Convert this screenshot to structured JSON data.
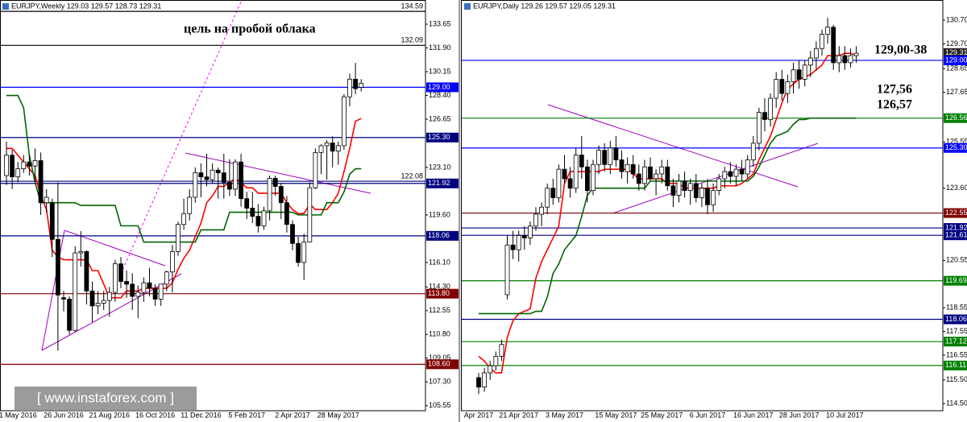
{
  "chart_data": [
    {
      "type": "candlestick",
      "title": "EURJPY,Weekly  129.03 129.57 128.73 129.31",
      "annotations": [
        "цель на пробой облака"
      ],
      "categories": [
        null,
        null,
        "1 May 2016",
        null,
        null,
        null,
        null,
        null,
        null,
        null,
        "26 Jun 2016",
        null,
        null,
        null,
        null,
        null,
        null,
        null,
        "21 Aug 2016",
        null,
        null,
        null,
        null,
        null,
        null,
        null,
        "16 Oct 2016",
        null,
        null,
        null,
        null,
        null,
        null,
        null,
        "11 Dec 2016",
        null,
        null,
        null,
        null,
        null,
        null,
        null,
        "5 Feb 2017",
        null,
        null,
        null,
        null,
        null,
        null,
        null,
        "2 Apr 2017",
        null,
        null,
        null,
        null,
        null,
        null,
        null,
        "28 May 2017",
        null,
        null,
        null,
        null
      ],
      "open": [
        122.5,
        124.0,
        122.4,
        123.0,
        123.5,
        123.2,
        123.6,
        120.5,
        120.5,
        117.8,
        113.5,
        113.4,
        111.1,
        116.8,
        116.9,
        114.0,
        112.9,
        113.1,
        113.3,
        113.9,
        116.0,
        114.7,
        114.5,
        113.6,
        113.9,
        114.6,
        114.2,
        113.4,
        114.5,
        115.4,
        116.9,
        118.9,
        119.7,
        120.9,
        122.7,
        122.4,
        122.2,
        122.9,
        122.7,
        122.0,
        121.5,
        123.5,
        120.8,
        120.1,
        119.5,
        118.8,
        119.9,
        122.3,
        121.7,
        120.5,
        118.9,
        117.5,
        116.1,
        117.6,
        121.6,
        124.2,
        124.7,
        124.9,
        124.3,
        124.7,
        128.3,
        129.6,
        129.0
      ],
      "high": [
        125.0,
        124.4,
        123.5,
        124.0,
        124.0,
        124.5,
        124.2,
        121.5,
        120.8,
        122.0,
        114.0,
        113.6,
        117.3,
        118.4,
        117.0,
        114.7,
        114.0,
        114.0,
        114.3,
        116.3,
        116.5,
        115.5,
        115.3,
        114.4,
        115.0,
        115.7,
        114.5,
        114.5,
        115.5,
        117.4,
        119.1,
        120.8,
        121.5,
        123.1,
        123.4,
        124.1,
        123.4,
        123.1,
        124.1,
        123.7,
        123.7,
        124.1,
        121.3,
        121.3,
        120.4,
        120.2,
        122.5,
        122.5,
        121.9,
        121.0,
        119.2,
        118.0,
        118.2,
        122.0,
        124.5,
        124.8,
        125.1,
        125.4,
        125.0,
        128.5,
        130.0,
        130.8,
        129.6
      ],
      "low": [
        121.8,
        121.5,
        122.0,
        122.7,
        122.5,
        122.0,
        119.6,
        119.8,
        116.5,
        109.6,
        112.5,
        110.8,
        111.0,
        115.8,
        113.0,
        111.7,
        112.3,
        112.6,
        112.1,
        113.2,
        114.2,
        113.5,
        112.6,
        112.0,
        113.2,
        113.6,
        112.9,
        112.9,
        114.0,
        113.9,
        116.6,
        118.5,
        119.2,
        120.5,
        120.9,
        121.7,
        121.9,
        120.8,
        120.8,
        121.0,
        121.0,
        120.2,
        119.3,
        119.0,
        118.3,
        118.5,
        119.2,
        121.0,
        119.3,
        118.3,
        117.0,
        115.8,
        114.8,
        117.6,
        121.5,
        122.6,
        122.2,
        123.1,
        123.3,
        124.4,
        127.6,
        128.5,
        128.7
      ],
      "close": [
        124.0,
        122.4,
        123.0,
        123.5,
        123.2,
        123.6,
        120.5,
        120.9,
        117.8,
        113.7,
        113.4,
        111.1,
        116.8,
        116.9,
        114.0,
        112.9,
        113.1,
        113.3,
        113.9,
        116.0,
        114.7,
        114.5,
        113.6,
        113.9,
        114.6,
        114.2,
        113.4,
        114.5,
        115.4,
        116.9,
        118.9,
        119.7,
        120.9,
        122.7,
        122.4,
        122.2,
        122.9,
        122.7,
        122.0,
        121.5,
        123.5,
        120.8,
        120.1,
        119.5,
        118.8,
        119.9,
        122.3,
        121.7,
        120.5,
        118.9,
        117.5,
        116.1,
        117.6,
        121.6,
        124.2,
        124.7,
        124.9,
        124.3,
        124.7,
        128.3,
        129.6,
        128.9,
        129.3
      ],
      "up_color": "#ffffff",
      "down_color": "#000000",
      "lines": [
        {
          "color": "#ff0000",
          "values": [
            124.5,
            124.5,
            124.0,
            123.5,
            123.0,
            122.5,
            121.0,
            120.0,
            117.0,
            116.5,
            116.3,
            116.3,
            116.3,
            116.3,
            116.3,
            115.5,
            115.5,
            114.5,
            113.5,
            113.5,
            113.5,
            114.0,
            114.0,
            114.0,
            114.2,
            114.2,
            114.2,
            114.2,
            114.2,
            114.6,
            115.6,
            116.4,
            117.0,
            118.0,
            119.0,
            120.5,
            121.0,
            121.7,
            121.7,
            122.0,
            122.3,
            122.0,
            121.6,
            121.6,
            121.2,
            121.2,
            121.2,
            121.2,
            121.2,
            120.5,
            120.0,
            119.7,
            119.7,
            120.4,
            120.0,
            120.0,
            120.0,
            120.5,
            121.2,
            122.8,
            124.5,
            126.5,
            126.7
          ]
        },
        {
          "color": "#006400",
          "values": [
            128.4,
            128.4,
            128.4,
            127.5,
            124.0,
            122.0,
            120.5,
            120.5,
            120.5,
            120.5,
            120.5,
            120.5,
            120.5,
            120.3,
            120.3,
            120.3,
            120.3,
            120.3,
            120.3,
            120.3,
            118.8,
            118.8,
            118.8,
            118.8,
            117.6,
            117.6,
            117.6,
            117.6,
            117.6,
            117.6,
            117.6,
            117.6,
            117.6,
            117.6,
            118.5,
            118.5,
            118.5,
            118.5,
            118.5,
            119.8,
            119.8,
            119.8,
            119.8,
            119.8,
            119.8,
            119.8,
            119.8,
            119.8,
            119.8,
            119.8,
            119.8,
            119.6,
            119.6,
            119.6,
            119.6,
            119.6,
            120.5,
            120.5,
            120.5,
            121.3,
            122.6,
            123.0,
            123.0
          ]
        }
      ],
      "levels": [
        {
          "value": 134.59,
          "color": "#000000",
          "box": false
        },
        {
          "value": 132.09,
          "color": "#000000",
          "box": false
        },
        {
          "value": 129,
          "label": "129.00",
          "color": "#0000ff",
          "box": true
        },
        {
          "value": 125.3,
          "label": "125.30",
          "color": "#000080",
          "box": true
        },
        {
          "value": 122.08,
          "color": "#000080",
          "box": false
        },
        {
          "value": 121.92,
          "color": "#000080",
          "box": true
        },
        {
          "value": 118.06,
          "color": "#000080",
          "box": true
        },
        {
          "value": 113.8,
          "label": "113.80",
          "color": "#800000",
          "box": true
        },
        {
          "value": 108.6,
          "label": "108.60",
          "color": "#800000",
          "box": true
        }
      ],
      "ylim": [
        105.18,
        135.43
      ],
      "yticks": [
        133.65,
        {
          "value": 131.9,
          "label": "131.90"
        },
        130.15,
        {
          "value": 128.4,
          "label": "128.40"
        },
        126.65,
        {
          "value": 123.1,
          "label": "123.10"
        },
        {
          "value": 119.6,
          "label": "119.60"
        },
        {
          "value": 116.1,
          "label": "116.10"
        },
        {
          "value": 114.3,
          "label": "114.30"
        },
        112.55,
        {
          "value": 110.8,
          "label": "110.80"
        },
        109.05,
        {
          "value": 107.3,
          "label": "107.30"
        },
        105.55
      ],
      "grid": false
    },
    {
      "type": "candlestick",
      "title": "EURJPY,Daily  129.26 129.57 129.05 129.31",
      "annotations": [
        "129,00-38",
        "127,56",
        "126,57"
      ],
      "categories": [
        "Apr 2017",
        null,
        null,
        null,
        null,
        null,
        null,
        "21 Apr 2017",
        null,
        null,
        null,
        null,
        null,
        null,
        null,
        "3 May 2017",
        null,
        null,
        null,
        null,
        null,
        null,
        null,
        null,
        "15 May 2017",
        null,
        null,
        null,
        null,
        null,
        null,
        null,
        "25 May 2017",
        null,
        null,
        null,
        null,
        null,
        null,
        null,
        "6 Jun 2017",
        null,
        null,
        null,
        null,
        null,
        null,
        null,
        "16 Jun 2017",
        null,
        null,
        null,
        null,
        null,
        null,
        null,
        "28 Jun 2017",
        null,
        null,
        null,
        null,
        null,
        null,
        null,
        "10 Jul 2017",
        null,
        null
      ],
      "open": [
        115.6,
        115.2,
        115.8,
        116.1,
        116.5,
        119.1,
        121.2,
        121.0,
        121.6,
        121.5,
        122.0,
        122.5,
        122.8,
        123.6,
        123.2,
        124.4,
        124.0,
        123.6,
        125.0,
        124.5,
        123.5,
        124.6,
        125.2,
        124.6,
        125.3,
        124.8,
        124.3,
        124.6,
        124.2,
        123.8,
        124.5,
        124.0,
        124.2,
        124.5,
        123.7,
        123.3,
        123.9,
        123.5,
        123.8,
        123.2,
        123.6,
        122.9,
        123.5,
        124.0,
        124.3,
        124.1,
        124.4,
        124.2,
        124.8,
        125.5,
        126.8,
        126.5,
        127.4,
        128.2,
        127.6,
        128.1,
        128.6,
        128.2,
        128.8,
        129.1,
        129.5,
        130.1,
        130.4,
        128.9,
        129.2,
        128.9,
        129.2
      ],
      "high": [
        115.8,
        116.0,
        116.3,
        116.7,
        117.2,
        121.6,
        121.8,
        121.8,
        122.0,
        122.2,
        122.8,
        123.0,
        123.8,
        124.0,
        124.6,
        125.0,
        124.5,
        125.3,
        125.8,
        124.8,
        124.8,
        125.4,
        125.5,
        125.6,
        125.8,
        125.2,
        124.9,
        125.0,
        124.6,
        124.8,
        124.9,
        124.4,
        124.8,
        124.8,
        124.0,
        124.2,
        124.3,
        124.0,
        124.2,
        123.8,
        124.0,
        123.8,
        124.2,
        124.5,
        124.7,
        124.6,
        124.8,
        125.0,
        125.8,
        127.0,
        127.4,
        127.6,
        128.5,
        128.6,
        128.4,
        128.9,
        129.0,
        129.0,
        129.4,
        129.8,
        130.3,
        130.8,
        130.5,
        129.6,
        129.6,
        129.5,
        129.6
      ],
      "low": [
        114.9,
        115.0,
        115.5,
        115.9,
        116.3,
        118.9,
        120.6,
        120.5,
        121.0,
        121.2,
        121.8,
        122.0,
        122.5,
        122.9,
        123.0,
        123.8,
        123.2,
        123.4,
        124.0,
        123.0,
        123.3,
        124.2,
        124.3,
        124.2,
        124.5,
        124.0,
        123.8,
        124.0,
        123.5,
        123.5,
        123.9,
        123.3,
        123.8,
        123.5,
        122.8,
        123.0,
        123.2,
        122.9,
        123.0,
        122.8,
        122.5,
        122.6,
        123.3,
        123.6,
        123.8,
        123.7,
        123.9,
        124.0,
        124.5,
        125.2,
        126.0,
        126.2,
        127.0,
        127.3,
        127.2,
        127.6,
        127.8,
        127.9,
        128.3,
        128.6,
        129.2,
        129.7,
        128.6,
        128.5,
        128.6,
        128.7,
        128.9
      ],
      "close": [
        115.2,
        115.8,
        116.1,
        116.5,
        117.0,
        121.2,
        121.0,
        121.6,
        121.5,
        122.0,
        122.5,
        122.8,
        123.6,
        123.2,
        124.4,
        124.0,
        123.6,
        125.0,
        124.5,
        123.5,
        124.6,
        125.2,
        124.6,
        125.3,
        124.8,
        124.3,
        124.6,
        124.2,
        123.8,
        124.5,
        124.0,
        124.2,
        124.5,
        123.7,
        123.3,
        123.9,
        123.5,
        123.8,
        123.2,
        123.6,
        122.9,
        123.5,
        124.0,
        124.3,
        124.1,
        124.4,
        124.2,
        124.8,
        125.5,
        126.8,
        126.5,
        127.4,
        128.2,
        127.6,
        128.1,
        128.6,
        128.2,
        128.8,
        129.1,
        129.5,
        130.1,
        130.4,
        128.9,
        129.2,
        128.9,
        129.2,
        129.3
      ],
      "up_color": "#ffffff",
      "down_color": "#000000",
      "lines": [
        {
          "color": "#ff0000",
          "values": [
            116.5,
            116.3,
            116.0,
            115.8,
            115.8,
            117.3,
            118.0,
            118.3,
            118.4,
            118.5,
            119.8,
            120.5,
            121.0,
            121.5,
            122.0,
            123.8,
            124.3,
            124.3,
            124.3,
            124.3,
            124.3,
            124.3,
            124.4,
            124.4,
            124.4,
            124.4,
            124.4,
            124.2,
            124.0,
            124.0,
            124.0,
            124.0,
            124.0,
            123.8,
            123.8,
            123.8,
            123.6,
            123.6,
            123.6,
            123.6,
            123.6,
            123.6,
            123.7,
            123.7,
            123.7,
            123.7,
            123.8,
            124.0,
            124.2,
            124.8,
            125.3,
            125.8,
            126.5,
            127.2,
            127.8,
            128.0,
            128.2,
            128.3,
            128.4,
            128.6,
            128.8,
            129.2,
            129.2,
            129.2,
            129.3,
            129.3,
            129.2
          ]
        },
        {
          "color": "#006400",
          "values": [
            118.3,
            118.3,
            118.3,
            118.3,
            118.3,
            118.3,
            118.3,
            118.3,
            118.3,
            118.3,
            118.4,
            118.4,
            119.0,
            120.0,
            120.4,
            121.0,
            121.3,
            121.6,
            122.4,
            123.3,
            123.6,
            123.6,
            123.6,
            123.6,
            123.6,
            123.6,
            123.6,
            123.6,
            123.6,
            123.6,
            123.9,
            123.9,
            123.9,
            123.9,
            123.9,
            123.9,
            123.9,
            123.9,
            123.9,
            123.9,
            123.9,
            123.9,
            123.9,
            123.9,
            123.9,
            123.9,
            123.9,
            123.9,
            124.1,
            124.5,
            125.0,
            125.5,
            125.8,
            125.9,
            126.0,
            126.3,
            126.5,
            126.5,
            126.56,
            126.56,
            126.56,
            126.56,
            126.56,
            126.56,
            126.56,
            126.56,
            126.56
          ]
        }
      ],
      "levels": [
        {
          "value": 129.31,
          "color": "#202020",
          "box": true,
          "line": false
        },
        {
          "value": 129,
          "label": "129.00",
          "color": "#0000ff",
          "box": true
        },
        {
          "value": 126.56,
          "color": "#008000",
          "box": true
        },
        {
          "value": 125.3,
          "label": "125.30",
          "color": "#0000ff",
          "box": true
        },
        {
          "value": 122.55,
          "color": "#800000",
          "box": true
        },
        {
          "value": 121.92,
          "color": "#000080",
          "box": true
        },
        {
          "value": 121.61,
          "color": "#000080",
          "box": true
        },
        {
          "value": 119.69,
          "color": "#008000",
          "box": true
        },
        {
          "value": 118.06,
          "color": "#000080",
          "box": true
        },
        {
          "value": 117.12,
          "color": "#008000",
          "box": true
        },
        {
          "value": 116.11,
          "color": "#008000",
          "box": true
        }
      ],
      "ylim": [
        114.2,
        131.55
      ],
      "yticks": [
        {
          "value": 130.7,
          "label": "130.70"
        },
        {
          "value": 129.7,
          "label": "129.70"
        },
        128.65,
        127.65,
        125.55,
        {
          "value": 123.6,
          "label": "123.60"
        },
        120.55,
        118.55,
        117.55,
        116.55,
        {
          "value": 115.5,
          "label": "115.50"
        },
        {
          "value": 114.5,
          "label": "114.50"
        }
      ],
      "grid": false
    }
  ],
  "watermark": "[ www.instaforex.com ]"
}
